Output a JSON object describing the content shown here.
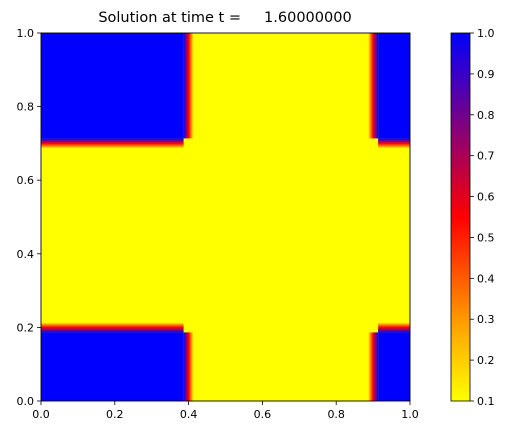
{
  "chart_data": {
    "type": "heatmap",
    "title": "Solution at time t =     1.60000000",
    "xlabel": "",
    "ylabel": "",
    "xlim": [
      0,
      1
    ],
    "ylim": [
      0,
      1
    ],
    "x_ticks": [
      "0.0",
      "0.2",
      "0.4",
      "0.6",
      "0.8",
      "1.0"
    ],
    "y_ticks": [
      "0.0",
      "0.2",
      "0.4",
      "0.6",
      "0.8",
      "1.0"
    ],
    "colorbar": {
      "min": 0.1,
      "max": 1.0,
      "ticks": [
        "0.1",
        "0.2",
        "0.3",
        "0.4",
        "0.5",
        "0.6",
        "0.7",
        "0.8",
        "0.9",
        "1.0"
      ],
      "colors": [
        "#ffff00",
        "#ff0000",
        "#0000ff"
      ]
    },
    "field": {
      "background_value": 0.1,
      "high_value": 1.0,
      "x_band": [
        0.4,
        0.9
      ],
      "y_band": [
        0.2,
        0.7
      ],
      "blue_regions": [
        {
          "x": [
            0.0,
            0.4
          ],
          "y": [
            0.7,
            1.0
          ]
        },
        {
          "x": [
            0.9,
            1.0
          ],
          "y": [
            0.7,
            1.0
          ]
        },
        {
          "x": [
            0.0,
            0.4
          ],
          "y": [
            0.0,
            0.2
          ]
        },
        {
          "x": [
            0.9,
            1.0
          ],
          "y": [
            0.0,
            0.2
          ]
        }
      ]
    }
  }
}
